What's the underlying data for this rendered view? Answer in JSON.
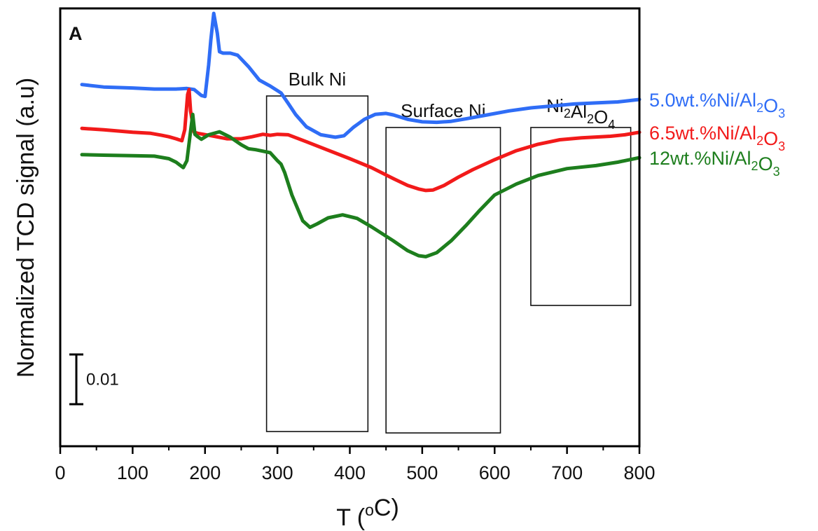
{
  "chart_data": {
    "type": "line",
    "panel_label": "A",
    "xlabel": "T (oC)",
    "xlabel_parts": {
      "base": "T (",
      "sup": "o",
      "tail": "C)"
    },
    "ylabel": "Normalized TCD signal (a.u)",
    "xlim": [
      0,
      800
    ],
    "x_ticks": [
      0,
      100,
      200,
      300,
      400,
      500,
      600,
      700,
      800
    ],
    "y_ticks_shown": false,
    "grid": false,
    "ylim_relative": [
      0,
      0.088
    ],
    "scale_bar": {
      "value": 0.01,
      "label": "0.01"
    },
    "regions": [
      {
        "name": "Bulk Ni",
        "x_start": 285,
        "x_end": 425,
        "label_parts": [
          {
            "t": "Bulk Ni"
          }
        ]
      },
      {
        "name": "Surface Ni",
        "x_start": 450,
        "x_end": 608,
        "label_parts": [
          {
            "t": "Surface Ni"
          }
        ]
      },
      {
        "name": "Ni2Al2O4",
        "x_start": 650,
        "x_end": 788,
        "label_parts": [
          {
            "t": "Ni"
          },
          {
            "t": "2",
            "sub": true
          },
          {
            "t": "Al"
          },
          {
            "t": "2",
            "sub": true
          },
          {
            "t": "O"
          },
          {
            "t": "4",
            "sub": true
          }
        ]
      }
    ],
    "series": [
      {
        "name": "5.0wt.%Ni/Al2O3",
        "label_parts": [
          {
            "t": "5.0wt.%Ni/Al"
          },
          {
            "t": "2",
            "sub": true
          },
          {
            "t": "O"
          },
          {
            "t": "3",
            "sub": true
          }
        ],
        "color": "#2f6df6",
        "x": [
          30,
          60,
          100,
          130,
          160,
          175,
          185,
          195,
          200,
          205,
          208,
          212,
          217,
          220,
          225,
          235,
          245,
          260,
          275,
          290,
          305,
          315,
          325,
          340,
          360,
          380,
          392,
          405,
          420,
          435,
          450,
          460,
          480,
          500,
          520,
          540,
          560,
          590,
          620,
          650,
          680,
          710,
          740,
          770,
          800
        ],
        "y": [
          0.0727,
          0.0722,
          0.072,
          0.0718,
          0.0718,
          0.0719,
          0.0717,
          0.0705,
          0.0703,
          0.0766,
          0.0816,
          0.087,
          0.083,
          0.0793,
          0.079,
          0.079,
          0.0786,
          0.0763,
          0.0736,
          0.0724,
          0.071,
          0.0689,
          0.0667,
          0.0642,
          0.0626,
          0.0621,
          0.0624,
          0.0641,
          0.0657,
          0.0667,
          0.0669,
          0.0666,
          0.0657,
          0.0652,
          0.0651,
          0.0653,
          0.0658,
          0.0666,
          0.0674,
          0.068,
          0.0684,
          0.0688,
          0.069,
          0.0692,
          0.0697
        ]
      },
      {
        "name": "6.5wt.%Ni/Al2O3",
        "label_parts": [
          {
            "t": "6.5wt.%Ni/Al"
          },
          {
            "t": "2",
            "sub": true
          },
          {
            "t": "O"
          },
          {
            "t": "3",
            "sub": true
          }
        ],
        "color": "#f21a1a",
        "x": [
          30,
          60,
          100,
          125,
          140,
          150,
          160,
          168,
          172,
          176,
          178,
          180,
          185,
          190,
          205,
          230,
          250,
          265,
          280,
          290,
          300,
          315,
          340,
          370,
          400,
          430,
          460,
          480,
          495,
          505,
          515,
          530,
          550,
          570,
          600,
          630,
          660,
          690,
          720,
          760,
          780,
          800
        ],
        "y": [
          0.0639,
          0.0636,
          0.0631,
          0.0629,
          0.0625,
          0.0622,
          0.0618,
          0.0614,
          0.0636,
          0.0707,
          0.0717,
          0.0674,
          0.0631,
          0.0629,
          0.0625,
          0.0618,
          0.0618,
          0.0622,
          0.0627,
          0.0625,
          0.0627,
          0.0626,
          0.0612,
          0.0595,
          0.0578,
          0.056,
          0.0538,
          0.0524,
          0.0517,
          0.0514,
          0.0515,
          0.0524,
          0.0541,
          0.0556,
          0.0576,
          0.0594,
          0.0607,
          0.0616,
          0.062,
          0.0623,
          0.0626,
          0.0631
        ]
      },
      {
        "name": "12wt.%Ni/Al2O3",
        "label_parts": [
          {
            "t": "12wt.%Ni/Al"
          },
          {
            "t": "2",
            "sub": true
          },
          {
            "t": "O"
          },
          {
            "t": "3",
            "sub": true
          }
        ],
        "color": "#1d7e1d",
        "x": [
          30,
          60,
          100,
          130,
          150,
          160,
          170,
          175,
          180,
          183,
          186,
          190,
          195,
          205,
          220,
          235,
          250,
          260,
          270,
          280,
          290,
          300,
          305,
          310,
          320,
          335,
          345,
          355,
          370,
          390,
          410,
          430,
          460,
          480,
          495,
          505,
          520,
          540,
          560,
          580,
          600,
          630,
          660,
          700,
          740,
          770,
          800
        ],
        "y": [
          0.0586,
          0.0585,
          0.0584,
          0.0583,
          0.0578,
          0.0571,
          0.056,
          0.0574,
          0.0633,
          0.0667,
          0.0627,
          0.0622,
          0.0617,
          0.0626,
          0.0632,
          0.0621,
          0.0606,
          0.0598,
          0.0596,
          0.0593,
          0.059,
          0.0574,
          0.0567,
          0.055,
          0.0505,
          0.0453,
          0.044,
          0.0447,
          0.0459,
          0.0465,
          0.0458,
          0.0441,
          0.0413,
          0.0393,
          0.0383,
          0.0381,
          0.0389,
          0.0413,
          0.0443,
          0.0475,
          0.0505,
          0.0527,
          0.0544,
          0.0558,
          0.0564,
          0.0571,
          0.058
        ]
      }
    ]
  }
}
